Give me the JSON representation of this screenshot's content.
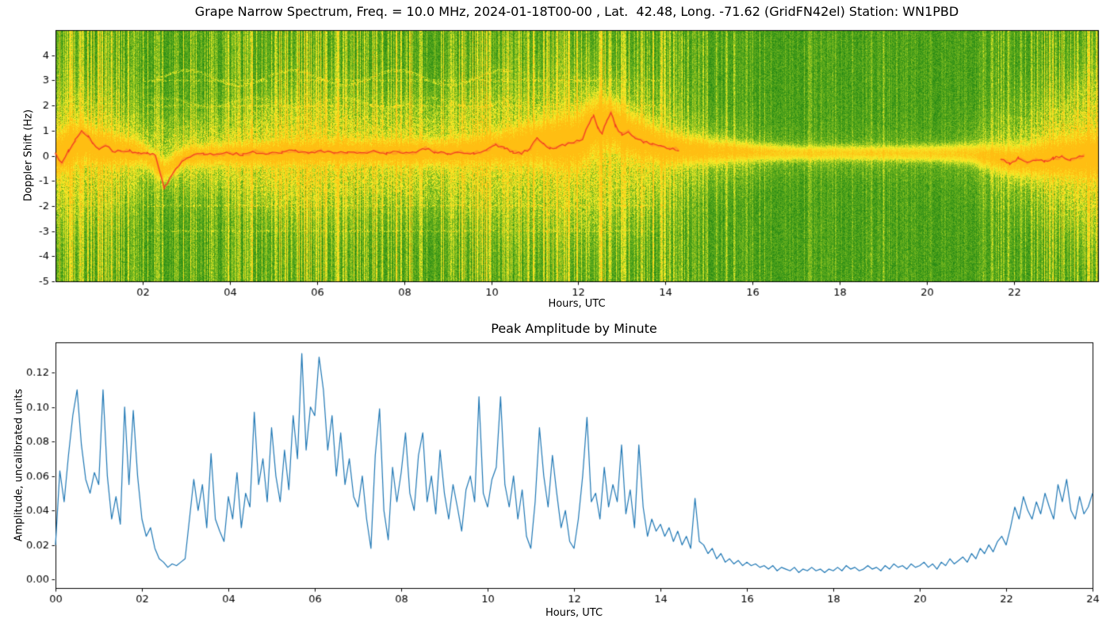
{
  "chart_data": [
    {
      "type": "heatmap",
      "title": "Grape Narrow Spectrum, Freq. = 10.0 MHz, 2024-01-18T00-00 , Lat.  42.48, Long. -71.62 (GridFN42el) Station: WN1PBD",
      "xlabel": "Hours, UTC",
      "ylabel": "Doppler Shift (Hz)",
      "xlim": [
        0,
        23.93
      ],
      "ylim": [
        -5,
        5
      ],
      "xticks": {
        "values": [
          2,
          4,
          6,
          8,
          10,
          12,
          14,
          16,
          18,
          20,
          22
        ],
        "labels": [
          "02",
          "04",
          "06",
          "08",
          "10",
          "12",
          "14",
          "16",
          "18",
          "20",
          "22"
        ]
      },
      "yticks": {
        "values": [
          -5,
          -4,
          -3,
          -2,
          -1,
          0,
          1,
          2,
          3,
          4
        ],
        "labels": [
          "-5",
          "-4",
          "-3",
          "-2",
          "-1",
          "0",
          "1",
          "2",
          "3",
          "4"
        ]
      },
      "grid": false,
      "legend": false,
      "seed": 20240118,
      "colors": {
        "map_stop_low": "#0d6e10",
        "map_stop_mid": "#f5ee2a",
        "map_stop_high": "#ffbe12",
        "trace_red": "#f03b1f",
        "trace_glow": "#ff7830",
        "axis": "#000000"
      },
      "activity_half_hour": [
        0.55,
        0.6,
        0.55,
        0.5,
        0.38,
        0.35,
        0.45,
        0.42,
        0.5,
        0.55,
        0.68,
        0.72,
        0.68,
        0.6,
        0.55,
        0.58,
        0.6,
        0.55,
        0.5,
        0.62,
        0.58,
        0.5,
        0.52,
        0.55,
        0.6,
        0.58,
        0.52,
        0.6,
        0.42,
        0.32,
        0.3,
        0.26,
        0.22,
        0.18,
        0.16,
        0.15,
        0.15,
        0.18,
        0.16,
        0.13,
        0.13,
        0.11,
        0.15,
        0.25,
        0.3,
        0.4,
        0.55,
        0.75
      ],
      "spread_by_hour": [
        2.6,
        2.4,
        1.6,
        1.5,
        1.6,
        2.0,
        2.2,
        2.0,
        2.0,
        2.0,
        2.4,
        2.8,
        3.0,
        2.6,
        2.0,
        1.4,
        1.0,
        0.8,
        0.8,
        0.8,
        0.9,
        1.3,
        2.0,
        2.4,
        2.8
      ],
      "band_strength_by_hour": [
        0.95,
        0.9,
        0.72,
        0.72,
        0.75,
        0.8,
        0.8,
        0.8,
        0.82,
        0.8,
        0.85,
        0.95,
        1.0,
        0.95,
        0.85,
        0.8,
        0.7,
        0.62,
        0.6,
        0.6,
        0.62,
        0.68,
        0.8,
        0.9,
        0.92
      ],
      "band_sigma_by_hour": [
        0.5,
        0.42,
        0.28,
        0.25,
        0.25,
        0.28,
        0.28,
        0.28,
        0.3,
        0.3,
        0.35,
        0.5,
        0.65,
        0.55,
        0.4,
        0.3,
        0.22,
        0.18,
        0.18,
        0.18,
        0.2,
        0.25,
        0.38,
        0.45,
        0.5
      ],
      "band_center": [
        [
          0,
          0.0
        ],
        [
          0.6,
          0.6
        ],
        [
          1,
          0.3
        ],
        [
          2,
          0.1
        ],
        [
          2.5,
          -0.6
        ],
        [
          3,
          0.0
        ],
        [
          6,
          0.15
        ],
        [
          9,
          0.12
        ],
        [
          10.2,
          0.3
        ],
        [
          11.05,
          0.5
        ],
        [
          12,
          0.6
        ],
        [
          12.35,
          1.2
        ],
        [
          12.75,
          1.3
        ],
        [
          13.2,
          0.8
        ],
        [
          14,
          0.3
        ],
        [
          15,
          0.18
        ],
        [
          17,
          0.1
        ],
        [
          19,
          0.1
        ],
        [
          21,
          0.08
        ],
        [
          22,
          -0.2
        ],
        [
          23,
          -0.08
        ],
        [
          23.9,
          0.0
        ]
      ],
      "carrier_trace": {
        "segments": [
          [
            [
              0.0,
              0.05
            ],
            [
              0.15,
              -0.3
            ],
            [
              0.3,
              0.2
            ],
            [
              0.45,
              0.6
            ],
            [
              0.6,
              0.95
            ],
            [
              0.75,
              0.8
            ],
            [
              0.85,
              0.5
            ],
            [
              1.0,
              0.3
            ],
            [
              1.15,
              0.45
            ],
            [
              1.3,
              0.2
            ],
            [
              1.5,
              0.15
            ],
            [
              1.7,
              0.2
            ],
            [
              1.9,
              0.1
            ],
            [
              2.1,
              0.1
            ],
            [
              2.3,
              0.0
            ],
            [
              2.5,
              -1.3
            ],
            [
              2.7,
              -0.7
            ],
            [
              2.9,
              -0.2
            ],
            [
              3.1,
              0.0
            ],
            [
              3.4,
              0.1
            ],
            [
              3.7,
              0.05
            ],
            [
              4.0,
              0.1
            ],
            [
              4.3,
              0.05
            ],
            [
              4.6,
              0.15
            ],
            [
              4.9,
              0.1
            ],
            [
              5.2,
              0.15
            ],
            [
              5.5,
              0.2
            ],
            [
              5.8,
              0.1
            ],
            [
              6.1,
              0.2
            ],
            [
              6.4,
              0.1
            ],
            [
              6.7,
              0.15
            ],
            [
              7.0,
              0.1
            ],
            [
              7.3,
              0.2
            ],
            [
              7.6,
              0.1
            ],
            [
              7.9,
              0.15
            ],
            [
              8.2,
              0.1
            ],
            [
              8.5,
              0.3
            ],
            [
              8.7,
              0.15
            ],
            [
              9.0,
              0.1
            ],
            [
              9.3,
              0.15
            ],
            [
              9.6,
              0.1
            ],
            [
              9.9,
              0.2
            ],
            [
              10.1,
              0.45
            ],
            [
              10.3,
              0.3
            ],
            [
              10.5,
              0.15
            ],
            [
              10.7,
              0.1
            ],
            [
              10.9,
              0.3
            ],
            [
              11.05,
              0.7
            ],
            [
              11.2,
              0.45
            ],
            [
              11.35,
              0.3
            ],
            [
              11.5,
              0.35
            ],
            [
              11.7,
              0.45
            ],
            [
              11.9,
              0.5
            ],
            [
              12.1,
              0.7
            ],
            [
              12.25,
              1.3
            ],
            [
              12.35,
              1.6
            ],
            [
              12.45,
              1.1
            ],
            [
              12.55,
              0.9
            ],
            [
              12.65,
              1.4
            ],
            [
              12.75,
              1.7
            ],
            [
              12.85,
              1.2
            ],
            [
              13.0,
              0.85
            ],
            [
              13.15,
              1.0
            ],
            [
              13.3,
              0.7
            ],
            [
              13.5,
              0.55
            ],
            [
              13.7,
              0.45
            ],
            [
              13.9,
              0.35
            ],
            [
              14.1,
              0.3
            ],
            [
              14.3,
              0.25
            ]
          ],
          [
            [
              21.7,
              -0.15
            ],
            [
              21.9,
              -0.3
            ],
            [
              22.1,
              -0.1
            ],
            [
              22.3,
              -0.3
            ],
            [
              22.5,
              -0.15
            ],
            [
              22.7,
              -0.25
            ],
            [
              22.9,
              -0.1
            ],
            [
              23.1,
              -0.05
            ],
            [
              23.3,
              -0.15
            ],
            [
              23.5,
              -0.05
            ],
            [
              23.6,
              0.0
            ]
          ]
        ]
      },
      "dotted_lines": {
        "hz": [
          3,
          2,
          -2,
          -3
        ],
        "t_range": [
          2,
          14
        ],
        "strength": 0.22,
        "density": 0.3
      },
      "wavy_lines": [
        {
          "base": 3.1,
          "amp": 0.3,
          "freq": 2.6,
          "t_range": [
            2.2,
            10.5
          ],
          "strength": 0.18
        },
        {
          "base": 2.1,
          "amp": 0.2,
          "freq": 3.1,
          "t_range": [
            2.2,
            10.5
          ],
          "strength": 0.12
        }
      ],
      "extra_streaks": [
        {
          "t": 12.5,
          "strength": 0.7
        },
        {
          "t": 13.9,
          "strength": 0.8
        },
        {
          "t": 15.4,
          "strength": 0.5
        },
        {
          "t": 17.3,
          "strength": 0.3
        },
        {
          "t": 19.0,
          "strength": 0.35
        },
        {
          "t": 21.5,
          "strength": 0.4
        },
        {
          "t": 23.7,
          "strength": 0.9
        }
      ]
    },
    {
      "type": "line",
      "title": "Peak Amplitude by Minute",
      "xlabel": "Hours, UTC",
      "ylabel": "Amplitude, uncalibrated units",
      "xlim": [
        0,
        24
      ],
      "ylim": [
        -0.005,
        0.1375
      ],
      "xticks": {
        "values": [
          0,
          2,
          4,
          6,
          8,
          10,
          12,
          14,
          16,
          18,
          20,
          22,
          24
        ],
        "labels": [
          "00",
          "02",
          "04",
          "06",
          "08",
          "10",
          "12",
          "14",
          "16",
          "18",
          "20",
          "22",
          "24"
        ]
      },
      "yticks": {
        "values": [
          0,
          0.02,
          0.04,
          0.06,
          0.08,
          0.1,
          0.12
        ],
        "labels": [
          "0.00",
          "0.02",
          "0.04",
          "0.06",
          "0.08",
          "0.10",
          "0.12"
        ]
      },
      "grid": false,
      "legend": false,
      "line_color": "#1f77b4",
      "x_start": 0,
      "x_step": 0.1,
      "values": [
        0.02,
        0.063,
        0.045,
        0.072,
        0.095,
        0.11,
        0.078,
        0.058,
        0.05,
        0.062,
        0.055,
        0.11,
        0.06,
        0.035,
        0.048,
        0.032,
        0.1,
        0.055,
        0.098,
        0.06,
        0.035,
        0.025,
        0.03,
        0.018,
        0.012,
        0.01,
        0.007,
        0.009,
        0.008,
        0.01,
        0.012,
        0.035,
        0.058,
        0.04,
        0.055,
        0.03,
        0.073,
        0.035,
        0.028,
        0.022,
        0.048,
        0.035,
        0.062,
        0.03,
        0.05,
        0.042,
        0.097,
        0.055,
        0.07,
        0.045,
        0.088,
        0.06,
        0.045,
        0.075,
        0.052,
        0.095,
        0.07,
        0.131,
        0.075,
        0.1,
        0.095,
        0.129,
        0.11,
        0.075,
        0.095,
        0.06,
        0.085,
        0.055,
        0.07,
        0.048,
        0.042,
        0.06,
        0.035,
        0.018,
        0.072,
        0.099,
        0.04,
        0.023,
        0.065,
        0.045,
        0.062,
        0.085,
        0.05,
        0.04,
        0.072,
        0.085,
        0.045,
        0.06,
        0.038,
        0.075,
        0.05,
        0.035,
        0.055,
        0.042,
        0.028,
        0.052,
        0.06,
        0.045,
        0.106,
        0.05,
        0.042,
        0.058,
        0.065,
        0.106,
        0.055,
        0.042,
        0.06,
        0.035,
        0.052,
        0.025,
        0.018,
        0.045,
        0.088,
        0.06,
        0.042,
        0.072,
        0.05,
        0.03,
        0.04,
        0.022,
        0.018,
        0.035,
        0.06,
        0.094,
        0.045,
        0.05,
        0.035,
        0.065,
        0.042,
        0.055,
        0.045,
        0.078,
        0.038,
        0.052,
        0.03,
        0.078,
        0.042,
        0.025,
        0.035,
        0.028,
        0.032,
        0.025,
        0.03,
        0.022,
        0.028,
        0.02,
        0.025,
        0.018,
        0.047,
        0.022,
        0.02,
        0.015,
        0.018,
        0.012,
        0.015,
        0.01,
        0.012,
        0.009,
        0.011,
        0.008,
        0.01,
        0.008,
        0.009,
        0.007,
        0.008,
        0.006,
        0.008,
        0.005,
        0.007,
        0.006,
        0.005,
        0.007,
        0.004,
        0.006,
        0.005,
        0.007,
        0.005,
        0.006,
        0.004,
        0.006,
        0.005,
        0.007,
        0.005,
        0.008,
        0.006,
        0.007,
        0.005,
        0.006,
        0.008,
        0.006,
        0.007,
        0.005,
        0.008,
        0.006,
        0.009,
        0.007,
        0.008,
        0.006,
        0.009,
        0.007,
        0.008,
        0.01,
        0.007,
        0.009,
        0.006,
        0.01,
        0.008,
        0.012,
        0.009,
        0.011,
        0.013,
        0.01,
        0.015,
        0.012,
        0.018,
        0.015,
        0.02,
        0.016,
        0.022,
        0.025,
        0.02,
        0.03,
        0.042,
        0.035,
        0.048,
        0.04,
        0.035,
        0.045,
        0.038,
        0.05,
        0.042,
        0.035,
        0.055,
        0.045,
        0.058,
        0.04,
        0.035,
        0.048,
        0.038,
        0.042,
        0.05
      ]
    }
  ]
}
